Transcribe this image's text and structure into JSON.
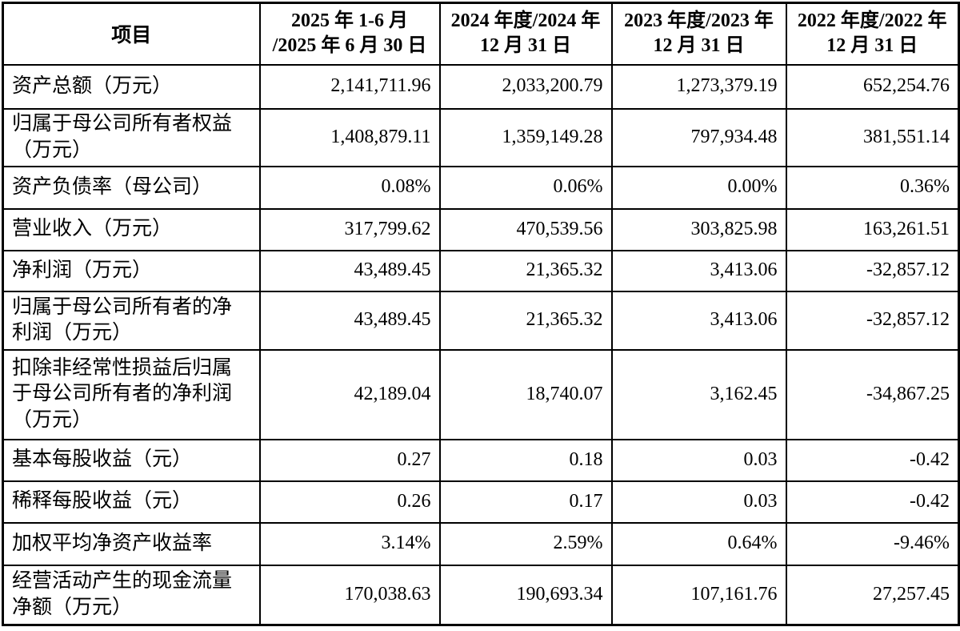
{
  "table": {
    "header": {
      "item_label": "项目",
      "columns": [
        {
          "line1": "2025 年 1-6 月",
          "line2": "/2025 年 6 月 30 日"
        },
        {
          "line1": "2024 年度/2024 年",
          "line2": "12 月 31 日"
        },
        {
          "line1": "2023 年度/2023 年",
          "line2": "12 月 31 日"
        },
        {
          "line1": "2022 年度/2022 年",
          "line2": "12 月 31 日"
        }
      ]
    },
    "rows": [
      {
        "label": "资产总额（万元）",
        "values": [
          "2,141,711.96",
          "2,033,200.79",
          "1,273,379.19",
          "652,254.76"
        ]
      },
      {
        "label": "归属于母公司所有者权益（万元）",
        "values": [
          "1,408,879.11",
          "1,359,149.28",
          "797,934.48",
          "381,551.14"
        ]
      },
      {
        "label": "资产负债率（母公司）",
        "values": [
          "0.08%",
          "0.06%",
          "0.00%",
          "0.36%"
        ]
      },
      {
        "label": "营业收入（万元）",
        "values": [
          "317,799.62",
          "470,539.56",
          "303,825.98",
          "163,261.51"
        ]
      },
      {
        "label": "净利润（万元）",
        "values": [
          "43,489.45",
          "21,365.32",
          "3,413.06",
          "-32,857.12"
        ]
      },
      {
        "label": "归属于母公司所有者的净利润（万元）",
        "values": [
          "43,489.45",
          "21,365.32",
          "3,413.06",
          "-32,857.12"
        ]
      },
      {
        "label": "扣除非经常性损益后归属于母公司所有者的净利润（万元）",
        "values": [
          "42,189.04",
          "18,740.07",
          "3,162.45",
          "-34,867.25"
        ]
      },
      {
        "label": "基本每股收益（元）",
        "values": [
          "0.27",
          "0.18",
          "0.03",
          "-0.42"
        ]
      },
      {
        "label": "稀释每股收益（元）",
        "values": [
          "0.26",
          "0.17",
          "0.03",
          "-0.42"
        ]
      },
      {
        "label": "加权平均净资产收益率",
        "values": [
          "3.14%",
          "2.59%",
          "0.64%",
          "-9.46%"
        ]
      },
      {
        "label": "经营活动产生的现金流量净额（万元）",
        "values": [
          "170,038.63",
          "190,693.34",
          "107,161.76",
          "27,257.45"
        ]
      }
    ],
    "colors": {
      "border": "#000000",
      "text": "#000000",
      "background": "#ffffff"
    }
  }
}
